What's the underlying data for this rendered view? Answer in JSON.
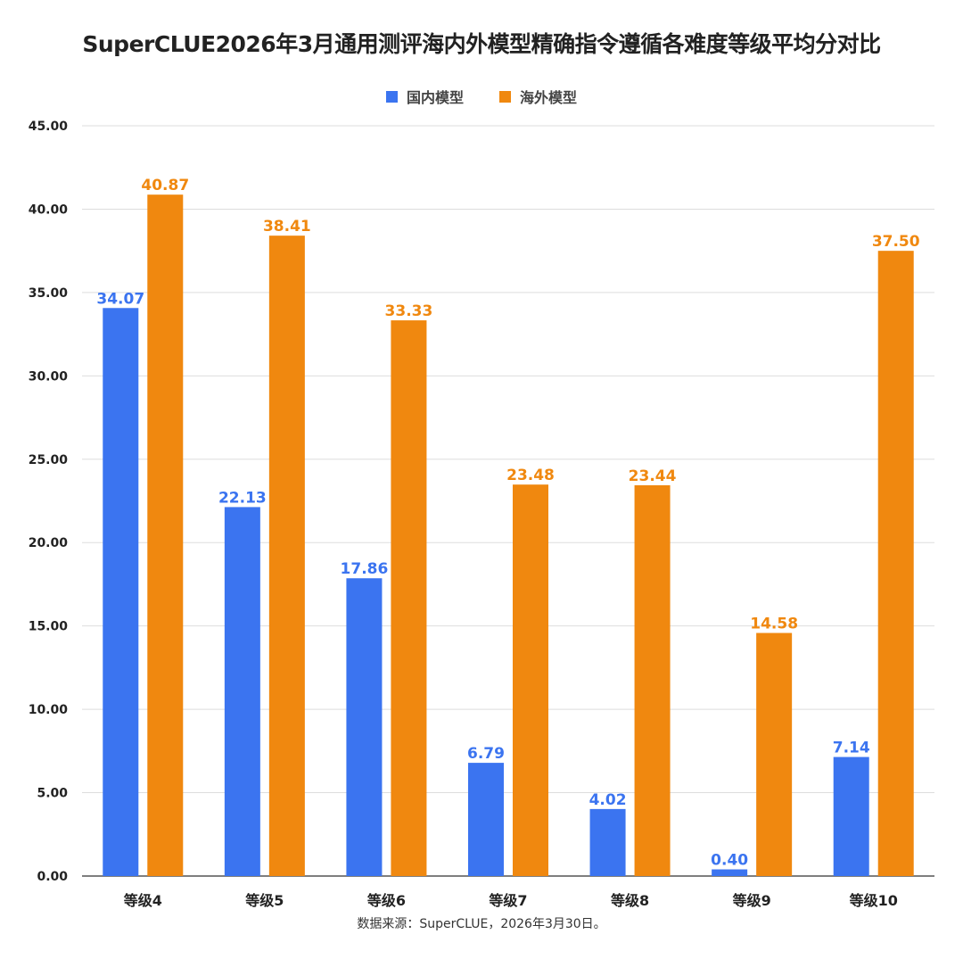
{
  "title": "SuperCLUE2026年3月通用测评海内外模型精确指令遵循各难度等级平均分对比",
  "source": "数据来源：SuperCLUE，2026年3月30日。",
  "colors": {
    "domestic": "#3B74F0",
    "overseas": "#F0880F",
    "grid": "#dddddd",
    "axis": "#555555"
  },
  "chart_data": {
    "type": "bar",
    "title": "SuperCLUE2026年3月通用测评海内外模型精确指令遵循各难度等级平均分对比",
    "categories": [
      "等级4",
      "等级5",
      "等级6",
      "等级7",
      "等级8",
      "等级9",
      "等级10"
    ],
    "series": [
      {
        "name": "国内模型",
        "values": [
          34.07,
          22.13,
          17.86,
          6.79,
          4.02,
          0.4,
          7.14
        ],
        "labels": [
          "34.07",
          "22.13",
          "17.86",
          "6.79",
          "4.02",
          "0.40",
          "7.14"
        ]
      },
      {
        "name": "海外模型",
        "values": [
          40.87,
          38.41,
          33.33,
          23.48,
          23.44,
          14.58,
          37.5
        ],
        "labels": [
          "40.87",
          "38.41",
          "33.33",
          "23.48",
          "23.44",
          "14.58",
          "37.50"
        ]
      }
    ],
    "yticks": [
      "0.00",
      "5.00",
      "10.00",
      "15.00",
      "20.00",
      "25.00",
      "30.00",
      "35.00",
      "40.00",
      "45.00"
    ],
    "ylim": [
      0,
      45
    ],
    "grid": true,
    "legend": "top-center"
  }
}
